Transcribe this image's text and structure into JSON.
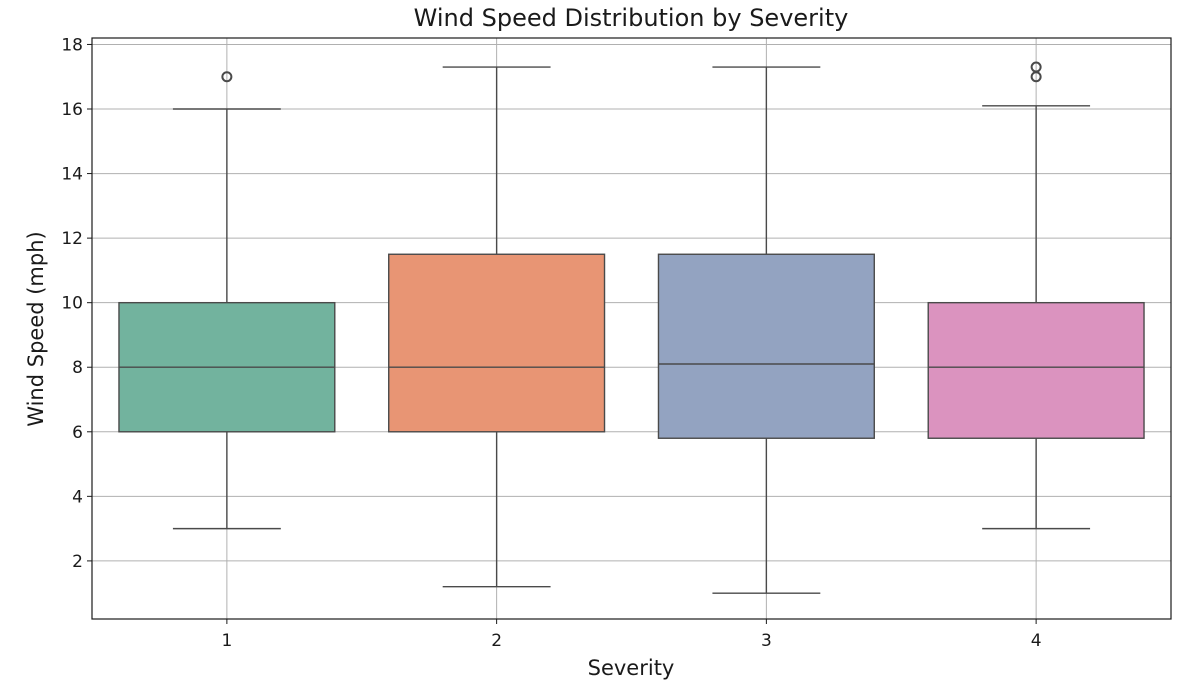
{
  "chart_data": {
    "type": "box",
    "title": "Wind Speed Distribution by Severity",
    "xlabel": "Severity",
    "ylabel": "Wind Speed (mph)",
    "ylim": [
      0.2,
      18.2
    ],
    "yticks": [
      2,
      4,
      6,
      8,
      10,
      12,
      14,
      16,
      18
    ],
    "grid": true,
    "categories": [
      "1",
      "2",
      "3",
      "4"
    ],
    "boxes": [
      {
        "category": "1",
        "color": "#72b39e",
        "whisker_low": 3.0,
        "q1": 6.0,
        "median": 8.0,
        "q3": 10.0,
        "whisker_high": 16.0,
        "outliers": [
          17.0
        ]
      },
      {
        "category": "2",
        "color": "#e89574",
        "whisker_low": 1.2,
        "q1": 6.0,
        "median": 8.0,
        "q3": 11.5,
        "whisker_high": 17.3,
        "outliers": []
      },
      {
        "category": "3",
        "color": "#93a3c1",
        "whisker_low": 1.0,
        "q1": 5.8,
        "median": 8.1,
        "q3": 11.5,
        "whisker_high": 17.3,
        "outliers": []
      },
      {
        "category": "4",
        "color": "#db93bf",
        "whisker_low": 3.0,
        "q1": 5.8,
        "median": 8.0,
        "q3": 10.0,
        "whisker_high": 16.1,
        "outliers": [
          17.0,
          17.3
        ]
      }
    ]
  }
}
